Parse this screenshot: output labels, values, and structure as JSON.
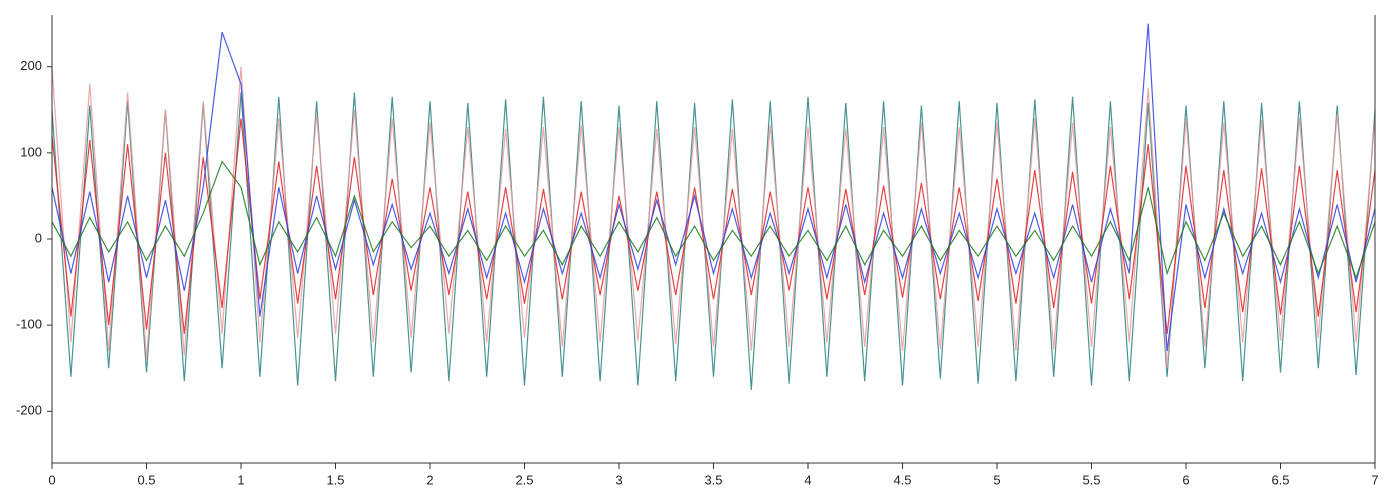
{
  "chart_data": {
    "type": "line",
    "x": [
      0,
      0.1,
      0.2,
      0.3,
      0.4,
      0.5,
      0.6,
      0.7,
      0.8,
      0.9,
      1,
      1.1,
      1.2,
      1.3,
      1.4,
      1.5,
      1.6,
      1.7,
      1.8,
      1.9,
      2,
      2.1,
      2.2,
      2.3,
      2.4,
      2.5,
      2.6,
      2.7,
      2.8,
      2.9,
      3,
      3.1,
      3.2,
      3.3,
      3.4,
      3.5,
      3.6,
      3.7,
      3.8,
      3.9,
      4,
      4.1,
      4.2,
      4.3,
      4.4,
      4.5,
      4.6,
      4.7,
      4.8,
      4.9,
      5,
      5.1,
      5.2,
      5.3,
      5.4,
      5.5,
      5.6,
      5.7,
      5.8,
      5.9,
      6,
      6.1,
      6.2,
      6.3,
      6.4,
      6.5,
      6.6,
      6.7,
      6.8,
      6.9,
      7
    ],
    "xlim": [
      0,
      7
    ],
    "xticks": [
      0,
      0.5,
      1,
      1.5,
      2,
      2.5,
      3,
      3.5,
      4,
      4.5,
      5,
      5.5,
      6,
      6.5,
      7
    ],
    "ylim": [
      -260,
      260
    ],
    "yticks": [
      -200,
      -100,
      0,
      100,
      200
    ],
    "series": [
      {
        "color": "#2a8080",
        "values": [
          150,
          -160,
          155,
          -150,
          160,
          -155,
          150,
          -165,
          158,
          -150,
          170,
          -160,
          165,
          -170,
          160,
          -165,
          170,
          -160,
          165,
          -155,
          160,
          -165,
          158,
          -160,
          162,
          -170,
          165,
          -160,
          160,
          -165,
          155,
          -170,
          160,
          -165,
          158,
          -160,
          162,
          -175,
          160,
          -168,
          165,
          -160,
          158,
          -165,
          160,
          -170,
          155,
          -162,
          160,
          -168,
          158,
          -165,
          162,
          -160,
          165,
          -170,
          160,
          -165,
          158,
          -160,
          155,
          -150,
          160,
          -165,
          158,
          -155,
          160,
          -150,
          155,
          -158,
          150
        ]
      },
      {
        "color": "#e89a9a",
        "values": [
          200,
          -120,
          180,
          -130,
          170,
          -140,
          150,
          -135,
          160,
          -110,
          200,
          -120,
          140,
          -115,
          145,
          -110,
          150,
          -120,
          140,
          -115,
          135,
          -110,
          130,
          -120,
          128,
          -115,
          130,
          -125,
          132,
          -120,
          130,
          -118,
          128,
          -122,
          130,
          -125,
          128,
          -130,
          132,
          -125,
          130,
          -120,
          128,
          -125,
          130,
          -130,
          135,
          -128,
          130,
          -125,
          135,
          -130,
          140,
          -128,
          135,
          -125,
          130,
          -120,
          175,
          -150,
          140,
          -125,
          135,
          -120,
          138,
          -118,
          140,
          -115,
          145,
          -120,
          140
        ]
      },
      {
        "color": "#e32020",
        "values": [
          120,
          -90,
          115,
          -100,
          110,
          -105,
          100,
          -110,
          95,
          -80,
          140,
          -70,
          90,
          -75,
          85,
          -70,
          95,
          -65,
          70,
          -60,
          60,
          -65,
          55,
          -70,
          60,
          -75,
          58,
          -70,
          55,
          -65,
          50,
          -60,
          55,
          -65,
          60,
          -70,
          58,
          -65,
          55,
          -60,
          60,
          -70,
          58,
          -65,
          62,
          -68,
          65,
          -70,
          60,
          -72,
          70,
          -75,
          80,
          -80,
          78,
          -75,
          85,
          -70,
          110,
          -110,
          85,
          -80,
          80,
          -85,
          82,
          -88,
          85,
          -90,
          80,
          -85,
          80
        ]
      },
      {
        "color": "#2a3ee8",
        "values": [
          60,
          -40,
          55,
          -50,
          50,
          -45,
          45,
          -60,
          60,
          240,
          180,
          -90,
          60,
          -40,
          50,
          -35,
          45,
          -30,
          40,
          -35,
          30,
          -40,
          35,
          -45,
          30,
          -50,
          35,
          -40,
          30,
          -45,
          40,
          -35,
          45,
          -30,
          50,
          -40,
          35,
          -45,
          30,
          -40,
          35,
          -45,
          40,
          -50,
          30,
          -45,
          35,
          -40,
          30,
          -45,
          35,
          -40,
          30,
          -45,
          40,
          -50,
          35,
          -40,
          250,
          -130,
          40,
          -45,
          35,
          -40,
          30,
          -50,
          35,
          -45,
          40,
          -50,
          35
        ]
      },
      {
        "color": "#1c7a1c",
        "values": [
          20,
          -20,
          25,
          -15,
          20,
          -25,
          15,
          -20,
          30,
          90,
          60,
          -30,
          20,
          -15,
          25,
          -20,
          50,
          -15,
          20,
          -10,
          15,
          -20,
          10,
          -25,
          15,
          -20,
          10,
          -30,
          15,
          -20,
          20,
          -15,
          25,
          -20,
          15,
          -25,
          10,
          -20,
          15,
          -20,
          10,
          -25,
          15,
          -30,
          10,
          -20,
          15,
          -25,
          10,
          -20,
          15,
          -20,
          10,
          -25,
          15,
          -20,
          20,
          -25,
          60,
          -40,
          20,
          -25,
          30,
          -20,
          15,
          -30,
          20,
          -40,
          15,
          -45,
          20
        ]
      }
    ]
  }
}
